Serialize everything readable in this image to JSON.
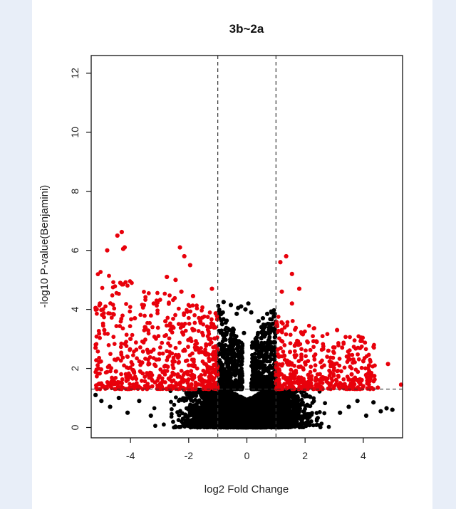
{
  "chart_data": {
    "type": "scatter",
    "title": "3b~2a",
    "xlabel": "log2 Fold Change",
    "ylabel": "-log10 P-value(Benjamini)",
    "xlim": [
      -5.35,
      5.35
    ],
    "ylim": [
      -0.35,
      12.6
    ],
    "x_ticks": [
      -4,
      -2,
      0,
      2,
      4
    ],
    "y_ticks": [
      0,
      2,
      4,
      6,
      8,
      10,
      12
    ],
    "x_tick_labels": [
      "-4",
      "-2",
      "0",
      "2",
      "4"
    ],
    "y_tick_labels": [
      "0",
      "2",
      "4",
      "6",
      "8",
      "10",
      "12"
    ],
    "thresholds": {
      "log2fc": [
        -1,
        1
      ],
      "neg_log10_p": 1.3
    },
    "colors": {
      "significant": "#e8000b",
      "not_significant": "#000000",
      "threshold_line": "#333333"
    },
    "grid": false,
    "legend": "none",
    "series": [
      {
        "color": "#e8000b",
        "points": [
          [
            -4.3,
            6.62
          ],
          [
            -4.45,
            6.5
          ],
          [
            -4.2,
            6.1
          ],
          [
            -4.25,
            6.05
          ],
          [
            -4.8,
            6.0
          ],
          [
            -4.35,
            4.9
          ],
          [
            -4.25,
            4.85
          ],
          [
            -2.3,
            6.1
          ],
          [
            -2.15,
            5.8
          ],
          [
            -1.95,
            5.5
          ],
          [
            -2.75,
            5.1
          ],
          [
            -2.45,
            5.0
          ],
          [
            -1.2,
            4.7
          ],
          [
            -2.25,
            4.6
          ],
          [
            -1.85,
            4.45
          ],
          [
            -5.05,
            4.2
          ],
          [
            -5.2,
            4.05
          ],
          [
            -3.2,
            4.2
          ],
          [
            -3.85,
            3.7
          ],
          [
            1.35,
            5.8
          ],
          [
            1.15,
            5.6
          ],
          [
            1.55,
            5.2
          ],
          [
            1.2,
            4.6
          ],
          [
            1.55,
            4.2
          ],
          [
            1.8,
            4.7
          ],
          [
            3.1,
            3.3
          ],
          [
            4.85,
            2.15
          ],
          [
            5.3,
            1.45
          ],
          [
            4.2,
            2.1
          ],
          [
            3.8,
            1.6
          ],
          [
            4.5,
            1.35
          ],
          [
            -4.9,
            3.3
          ],
          [
            -4.0,
            3.0
          ],
          [
            -3.5,
            3.4
          ],
          [
            -2.8,
            3.6
          ],
          [
            -2.2,
            3.2
          ],
          [
            -1.6,
            3.6
          ],
          [
            -1.3,
            3.0
          ],
          [
            1.2,
            3.3
          ],
          [
            2.4,
            2.9
          ],
          [
            2.8,
            2.6
          ],
          [
            3.5,
            2.3
          ],
          [
            -5.1,
            2.0
          ],
          [
            -4.5,
            1.9
          ],
          [
            -3.6,
            2.2
          ],
          [
            -3.0,
            2.5
          ],
          [
            -2.5,
            1.8
          ],
          [
            -1.8,
            2.1
          ],
          [
            -1.2,
            1.7
          ],
          [
            1.1,
            2.4
          ],
          [
            1.5,
            1.8
          ],
          [
            2.0,
            2.2
          ],
          [
            2.6,
            1.7
          ],
          [
            3.2,
            1.5
          ],
          [
            -4.3,
            1.5
          ],
          [
            -3.9,
            1.45
          ],
          [
            -2.9,
            1.55
          ],
          [
            -2.0,
            1.4
          ],
          [
            -1.1,
            1.5
          ],
          [
            1.3,
            1.45
          ],
          [
            2.2,
            1.5
          ],
          [
            3.0,
            1.4
          ],
          [
            3.6,
            1.8
          ],
          [
            4.0,
            1.4
          ],
          [
            -5.2,
            2.7
          ]
        ]
      },
      {
        "color": "#000000",
        "points": [
          [
            -0.8,
            4.25
          ],
          [
            -0.55,
            4.15
          ],
          [
            -0.3,
            4.05
          ],
          [
            -0.2,
            4.1
          ],
          [
            0.05,
            4.2
          ],
          [
            -0.05,
            4.0
          ],
          [
            0.15,
            3.9
          ],
          [
            0.7,
            3.85
          ],
          [
            0.85,
            3.9
          ],
          [
            0.55,
            3.7
          ],
          [
            0.5,
            3.4
          ],
          [
            -0.35,
            3.85
          ],
          [
            -0.85,
            3.5
          ],
          [
            -0.6,
            3.3
          ],
          [
            0.4,
            3.6
          ],
          [
            0.65,
            3.2
          ],
          [
            0.3,
            3.0
          ],
          [
            -0.1,
            3.2
          ],
          [
            -0.5,
            2.8
          ],
          [
            0.8,
            2.9
          ],
          [
            -0.65,
            2.5
          ],
          [
            0.6,
            2.4
          ],
          [
            -0.9,
            2.2
          ],
          [
            0.95,
            2.3
          ],
          [
            -5.2,
            1.1
          ],
          [
            -5.0,
            0.9
          ],
          [
            -4.7,
            0.7
          ],
          [
            -4.4,
            1.0
          ],
          [
            -4.1,
            0.5
          ],
          [
            -3.7,
            0.9
          ],
          [
            -3.3,
            0.4
          ],
          [
            4.35,
            0.85
          ],
          [
            4.6,
            0.55
          ],
          [
            4.8,
            0.65
          ],
          [
            5.0,
            0.6
          ],
          [
            4.1,
            0.4
          ],
          [
            3.8,
            0.9
          ],
          [
            3.5,
            0.7
          ],
          [
            3.2,
            0.5
          ]
        ]
      }
    ]
  }
}
